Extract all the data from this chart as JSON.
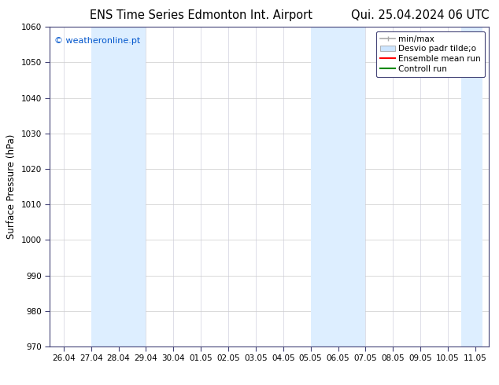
{
  "title_left": "ENS Time Series Edmonton Int. Airport",
  "title_right": "Qui. 25.04.2024 06 UTC",
  "ylabel": "Surface Pressure (hPa)",
  "ylim": [
    970,
    1060
  ],
  "yticks": [
    970,
    980,
    990,
    1000,
    1010,
    1020,
    1030,
    1040,
    1050,
    1060
  ],
  "xtick_labels": [
    "26.04",
    "27.04",
    "28.04",
    "29.04",
    "30.04",
    "01.05",
    "02.05",
    "03.05",
    "04.05",
    "05.05",
    "06.05",
    "07.05",
    "08.05",
    "09.05",
    "10.05",
    "11.05"
  ],
  "shaded_bands_linear": [
    [
      1,
      2
    ],
    [
      2,
      3
    ],
    [
      9,
      10
    ],
    [
      10,
      11
    ],
    [
      14.5,
      15.25
    ]
  ],
  "shaded_color": "#ddeeff",
  "watermark_text": "© weatheronline.pt",
  "watermark_color": "#0055cc",
  "legend_labels": [
    "min/max",
    "Desvio padr tilde;o",
    "Ensemble mean run",
    "Controll run"
  ],
  "minmax_color": "#aaaaaa",
  "std_color": "#cce5ff",
  "ensemble_color": "#ff0000",
  "control_color": "#008800",
  "bg_color": "#ffffff",
  "border_color": "#444477",
  "title_fontsize": 10.5,
  "tick_fontsize": 7.5,
  "ylabel_fontsize": 8.5,
  "legend_fontsize": 7.5
}
